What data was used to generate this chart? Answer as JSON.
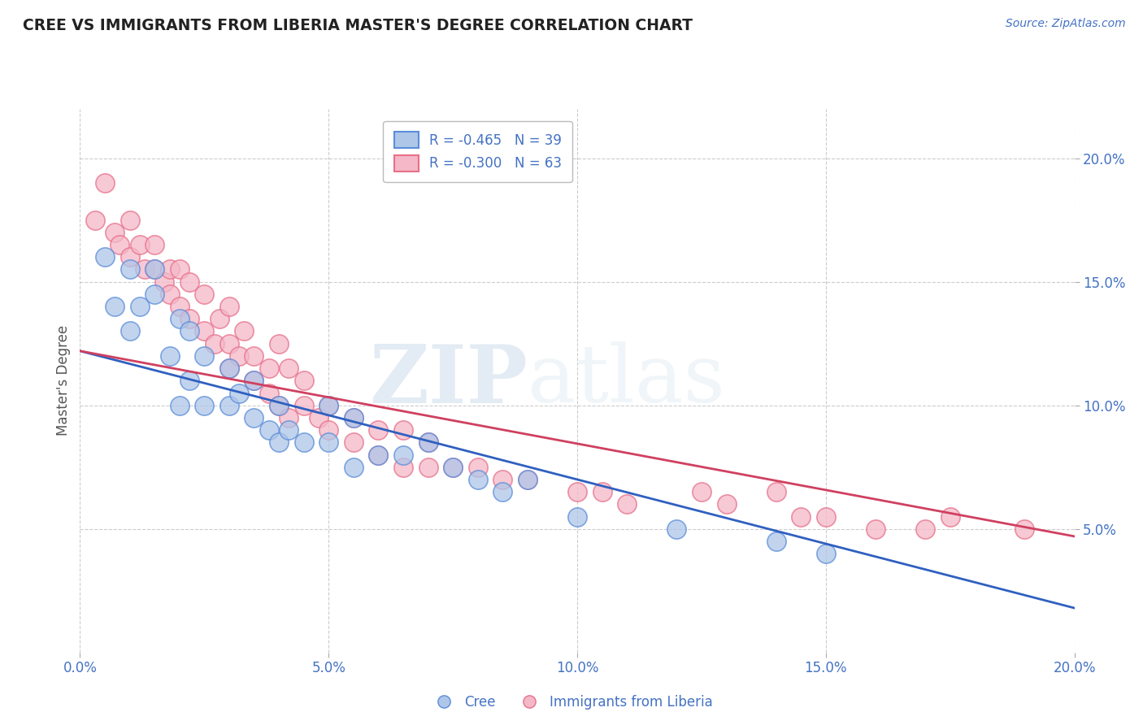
{
  "title": "CREE VS IMMIGRANTS FROM LIBERIA MASTER'S DEGREE CORRELATION CHART",
  "source_text": "Source: ZipAtlas.com",
  "ylabel": "Master's Degree",
  "x_min": 0.0,
  "x_max": 0.2,
  "y_min": 0.0,
  "y_max": 0.22,
  "x_ticks": [
    0.0,
    0.05,
    0.1,
    0.15,
    0.2
  ],
  "x_tick_labels": [
    "0.0%",
    "5.0%",
    "10.0%",
    "15.0%",
    "20.0%"
  ],
  "y_ticks": [
    0.05,
    0.1,
    0.15,
    0.2
  ],
  "y_tick_labels": [
    "5.0%",
    "10.0%",
    "15.0%",
    "20.0%"
  ],
  "cree_color": "#aec6e8",
  "liberia_color": "#f4b8c8",
  "cree_edge_color": "#5b8dd9",
  "liberia_edge_color": "#e8708a",
  "cree_line_color": "#3060c0",
  "liberia_line_color": "#d04060",
  "legend_r_cree": "R = -0.465",
  "legend_n_cree": "N = 39",
  "legend_r_liberia": "R = -0.300",
  "legend_n_liberia": "N = 63",
  "watermark_zip": "ZIP",
  "watermark_atlas": "atlas",
  "cree_scatter_x": [
    0.005,
    0.007,
    0.01,
    0.01,
    0.012,
    0.015,
    0.015,
    0.018,
    0.02,
    0.02,
    0.022,
    0.022,
    0.025,
    0.025,
    0.03,
    0.03,
    0.032,
    0.035,
    0.035,
    0.038,
    0.04,
    0.04,
    0.042,
    0.045,
    0.05,
    0.05,
    0.055,
    0.055,
    0.06,
    0.065,
    0.07,
    0.075,
    0.08,
    0.085,
    0.09,
    0.1,
    0.12,
    0.14,
    0.15
  ],
  "cree_scatter_y": [
    0.16,
    0.14,
    0.155,
    0.13,
    0.14,
    0.155,
    0.145,
    0.12,
    0.135,
    0.1,
    0.13,
    0.11,
    0.12,
    0.1,
    0.115,
    0.1,
    0.105,
    0.095,
    0.11,
    0.09,
    0.1,
    0.085,
    0.09,
    0.085,
    0.1,
    0.085,
    0.095,
    0.075,
    0.08,
    0.08,
    0.085,
    0.075,
    0.07,
    0.065,
    0.07,
    0.055,
    0.05,
    0.045,
    0.04
  ],
  "liberia_scatter_x": [
    0.003,
    0.005,
    0.007,
    0.008,
    0.01,
    0.01,
    0.012,
    0.013,
    0.015,
    0.015,
    0.017,
    0.018,
    0.018,
    0.02,
    0.02,
    0.022,
    0.022,
    0.025,
    0.025,
    0.027,
    0.028,
    0.03,
    0.03,
    0.03,
    0.032,
    0.033,
    0.035,
    0.035,
    0.038,
    0.038,
    0.04,
    0.04,
    0.042,
    0.042,
    0.045,
    0.045,
    0.048,
    0.05,
    0.05,
    0.055,
    0.055,
    0.06,
    0.06,
    0.065,
    0.065,
    0.07,
    0.07,
    0.075,
    0.08,
    0.085,
    0.09,
    0.1,
    0.105,
    0.11,
    0.125,
    0.13,
    0.14,
    0.145,
    0.15,
    0.16,
    0.17,
    0.175,
    0.19
  ],
  "liberia_scatter_y": [
    0.175,
    0.19,
    0.17,
    0.165,
    0.175,
    0.16,
    0.165,
    0.155,
    0.155,
    0.165,
    0.15,
    0.155,
    0.145,
    0.155,
    0.14,
    0.15,
    0.135,
    0.145,
    0.13,
    0.125,
    0.135,
    0.14,
    0.125,
    0.115,
    0.12,
    0.13,
    0.12,
    0.11,
    0.115,
    0.105,
    0.125,
    0.1,
    0.115,
    0.095,
    0.1,
    0.11,
    0.095,
    0.1,
    0.09,
    0.095,
    0.085,
    0.09,
    0.08,
    0.09,
    0.075,
    0.085,
    0.075,
    0.075,
    0.075,
    0.07,
    0.07,
    0.065,
    0.065,
    0.06,
    0.065,
    0.06,
    0.065,
    0.055,
    0.055,
    0.05,
    0.05,
    0.055,
    0.05
  ],
  "cree_trend_x": [
    0.0,
    0.2
  ],
  "cree_trend_y": [
    0.122,
    0.018
  ],
  "liberia_trend_x": [
    0.0,
    0.2
  ],
  "liberia_trend_y": [
    0.122,
    0.047
  ],
  "background_color": "#ffffff",
  "grid_color": "#cccccc",
  "title_color": "#222222",
  "tick_color": "#4472c4"
}
